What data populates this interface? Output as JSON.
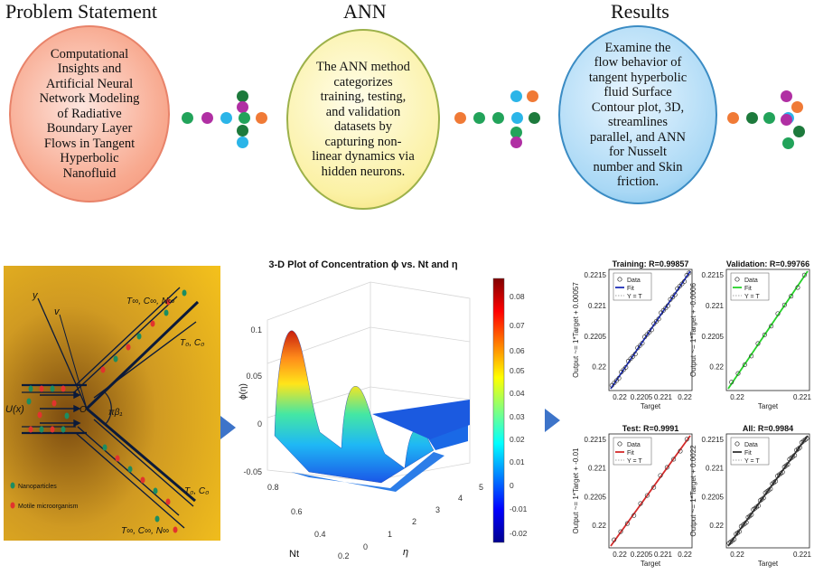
{
  "flow": {
    "problem": {
      "title": "Problem Statement",
      "text": "Computational\nInsights and\nArtificial Neural\nNetwork Modeling\nof Radiative\nBoundary Layer\nFlows in Tangent\nHyperbolic\nNanofluid"
    },
    "ann": {
      "title": "ANN",
      "text": "The ANN method\ncategorizes\ntraining, testing,\nand validation\ndatasets by\ncapturing non-\nlinear dynamics via\nhidden neurons."
    },
    "results": {
      "title": "Results",
      "text": "Examine the\nflow behavior of\ntangent hyperbolic\nfluid Surface\nContour plot, 3D,\nstreamlines\nparallel,  and ANN\nfor  Nusselt\nnumber and Skin\nfriction."
    },
    "connector_colors": [
      "#22a35a",
      "#b02fa3",
      "#2bb5e8",
      "#f07a36",
      "#1d7a3c"
    ]
  },
  "schematic": {
    "top_label": "T∞, C∞, N∞",
    "right_upper_label": "T₀, C₀",
    "right_lower_label": "T₀, C₀",
    "bottom_label": "T∞, C∞, N∞",
    "inlet_label": "U(x)",
    "angle_label": "πβ₁",
    "origin_label": "O",
    "axis_y": "y",
    "axis_v": "v",
    "legend_nanoparticles": "Nanoparticles",
    "legend_micro": "Motile microorganism"
  },
  "surface_plot": {
    "title": "3-D Plot of Concentration ϕ vs. Nt and η",
    "zlabel": "ϕ(η)",
    "xlabel": "η",
    "ylabel": "Nt",
    "z_ticks": [
      "0.1",
      "0.05",
      "0",
      "-0.05"
    ],
    "nt_ticks": [
      "0.8",
      "0.6",
      "0.4",
      "0.2"
    ],
    "eta_ticks": [
      "0",
      "1",
      "2",
      "3",
      "4",
      "5"
    ],
    "colorbar_ticks": [
      "0.08",
      "0.07",
      "0.06",
      "0.05",
      "0.04",
      "0.03",
      "0.02",
      "0.01",
      "0",
      "-0.01",
      "-0.02"
    ]
  },
  "regression": {
    "panels": [
      {
        "title": "Training: R=0.99857",
        "ylabel": "Output ~= 1*Target + 0.00057",
        "fit_color": "#1f2fb8",
        "yticks": [
          "0.2215",
          "0.221",
          "0.2205",
          "0.22"
        ],
        "xticks": [
          "0.22",
          "0.2205",
          "0.221",
          "0.22"
        ]
      },
      {
        "title": "Validation: R=0.99766",
        "ylabel": "Output ~= 1*Target + -0.0006",
        "fit_color": "#27d22a",
        "yticks": [
          "0.2215",
          "0.221",
          "0.2205",
          "0.22"
        ],
        "xticks": [
          "0.22",
          "0.221"
        ]
      },
      {
        "title": "Test: R=0.9991",
        "ylabel": "Output ~= 1*Target + -0.01",
        "fit_color": "#d42a2a",
        "yticks": [
          "0.2215",
          "0.221",
          "0.2205",
          "0.22"
        ],
        "xticks": [
          "0.22",
          "0.2205",
          "0.221",
          "0.22"
        ]
      },
      {
        "title": "All: R=0.9984",
        "ylabel": "Output ~= 1*Target + 0.0022",
        "fit_color": "#333333",
        "yticks": [
          "0.2215",
          "0.221",
          "0.2205",
          "0.22"
        ],
        "xticks": [
          "0.22",
          "0.221"
        ]
      }
    ],
    "xlabel": "Target",
    "legend": [
      "Data",
      "Fit",
      "Y = T"
    ]
  }
}
